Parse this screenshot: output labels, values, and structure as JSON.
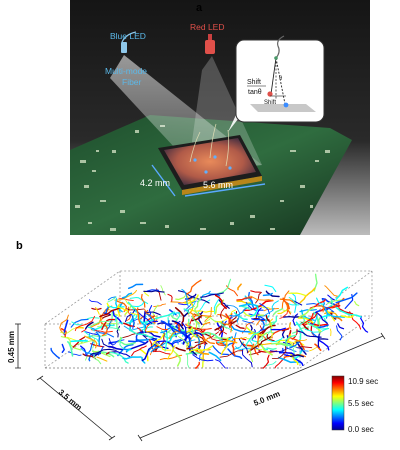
{
  "panel_a": {
    "label": "a",
    "blue_led": "Blue LED",
    "red_led": "Red LED",
    "fiber": [
      "Multi-mode",
      "Fiber"
    ],
    "dim_width": "4.2 mm",
    "dim_height": "5.6 mm",
    "inset": {
      "theta": "θ",
      "shift_top": "Shift",
      "tan": "tanθ",
      "shift_bottom": "Shift"
    },
    "colors": {
      "blue_led": "#5bb8e8",
      "red_led": "#e0504a",
      "board": "#2e6b3f"
    }
  },
  "panel_b": {
    "label": "b",
    "axis_z": "0.45 mm",
    "axis_y": "3.5 mm",
    "axis_x": "5.0 mm",
    "colorbar": {
      "max_label": "10.9 sec",
      "mid_label": "5.5 sec",
      "min_label": "0.0 sec",
      "range_sec": [
        0.0,
        10.9
      ],
      "colormap": "jet"
    }
  }
}
